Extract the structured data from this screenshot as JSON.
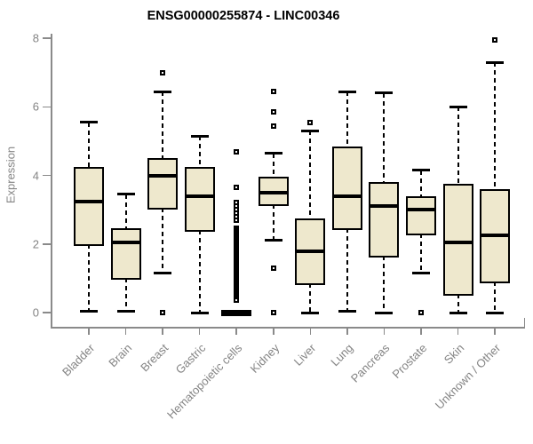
{
  "header": {
    "title": "ENSG00000255874 - LINC00346"
  },
  "chart_data": {
    "type": "boxplot",
    "title": "ENSG00000255874 - LINC00346",
    "xlabel": "",
    "ylabel": "Expression",
    "ylim": [
      0,
      8
    ],
    "yticks": [
      0,
      2,
      4,
      6,
      8
    ],
    "grid": false,
    "legend": false,
    "categories": [
      "Bladder",
      "Brain",
      "Breast",
      "Gastric",
      "Hematopoietic cells",
      "Kidney",
      "Liver",
      "Lung",
      "Pancreas",
      "Prostate",
      "Skin",
      "Unknown / Other"
    ],
    "series": [
      {
        "name": "Bladder",
        "low": 0.05,
        "q1": 2.0,
        "median": 3.25,
        "q3": 4.2,
        "high": 5.55,
        "outliers": []
      },
      {
        "name": "Brain",
        "low": 0.05,
        "q1": 1.0,
        "median": 2.05,
        "q3": 2.4,
        "high": 3.45,
        "outliers": []
      },
      {
        "name": "Breast",
        "low": 1.15,
        "q1": 3.05,
        "median": 4.0,
        "q3": 4.45,
        "high": 6.45,
        "outliers": [
          7.0,
          0.0
        ]
      },
      {
        "name": "Gastric",
        "low": 0.0,
        "q1": 2.4,
        "median": 3.4,
        "q3": 4.2,
        "high": 5.15,
        "outliers": []
      },
      {
        "name": "Hematopoietic cells",
        "low": 0.0,
        "q1": 0.0,
        "median": 0.0,
        "q3": 0.0,
        "high": 0.0,
        "outliers": [
          4.7,
          3.65,
          3.2,
          3.1,
          3.0,
          2.9,
          2.8,
          2.7,
          2.45,
          2.4,
          2.35,
          2.3,
          2.25,
          2.2,
          2.15,
          2.1,
          2.05,
          2.0,
          1.95,
          1.9,
          1.85,
          1.8,
          1.75,
          1.7,
          1.65,
          1.6,
          1.55,
          1.5,
          1.45,
          1.4,
          1.35,
          1.3,
          1.25,
          1.2,
          1.15,
          1.1,
          1.05,
          1.0,
          0.95,
          0.9,
          0.85,
          0.8,
          0.75,
          0.7,
          0.65,
          0.6,
          0.55,
          0.5,
          0.45,
          0.4,
          0.35
        ]
      },
      {
        "name": "Kidney",
        "low": 2.1,
        "q1": 3.15,
        "median": 3.5,
        "q3": 3.9,
        "high": 4.65,
        "outliers": [
          6.45,
          5.85,
          5.45,
          1.3,
          0.0
        ]
      },
      {
        "name": "Liver",
        "low": 0.0,
        "q1": 0.85,
        "median": 1.8,
        "q3": 2.7,
        "high": 5.3,
        "outliers": [
          5.55
        ]
      },
      {
        "name": "Lung",
        "low": 0.05,
        "q1": 2.45,
        "median": 3.4,
        "q3": 4.8,
        "high": 6.45,
        "outliers": []
      },
      {
        "name": "Pancreas",
        "low": 0.0,
        "q1": 1.65,
        "median": 3.1,
        "q3": 3.75,
        "high": 6.4,
        "outliers": []
      },
      {
        "name": "Prostate",
        "low": 1.15,
        "q1": 2.3,
        "median": 3.0,
        "q3": 3.35,
        "high": 4.15,
        "outliers": [
          0.0
        ]
      },
      {
        "name": "Skin",
        "low": 0.0,
        "q1": 0.55,
        "median": 2.05,
        "q3": 3.7,
        "high": 6.0,
        "outliers": []
      },
      {
        "name": "Unknown / Other",
        "low": 0.0,
        "q1": 0.9,
        "median": 2.25,
        "q3": 3.55,
        "high": 7.3,
        "outliers": [
          7.95
        ]
      }
    ],
    "colors": {
      "box_fill": "#EEE8CD",
      "box_border": "#000000",
      "median": "#000000",
      "whisker": "#000000",
      "axis": "#8a8a8a",
      "tick_label": "#848484",
      "title": "#000000"
    }
  }
}
